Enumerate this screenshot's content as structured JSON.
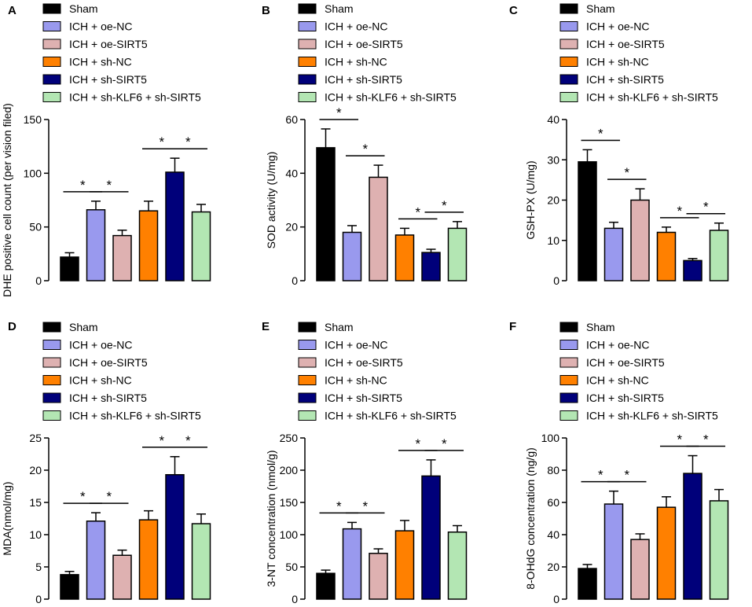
{
  "legend": [
    "Sham",
    "ICH + oe-NC",
    "ICH + oe-SIRT5",
    "ICH + sh-NC",
    "ICH + sh-SIRT5",
    "ICH + sh-KLF6 + sh-SIRT5"
  ],
  "colors": [
    "#000000",
    "#9999ee",
    "#deb1b1",
    "#ff8000",
    "#00007a",
    "#b3e6b3"
  ],
  "sig_mark": "*",
  "chart_data": [
    {
      "panel": "A",
      "type": "bar",
      "ylabel": "DHE positive cell count (per vision filed)",
      "ylim": [
        0,
        150
      ],
      "ticks": [
        0,
        50,
        100,
        150
      ],
      "values": [
        22,
        66,
        42,
        65,
        101,
        64
      ],
      "errors": [
        4,
        8,
        5,
        9,
        13,
        7
      ],
      "significance": [
        [
          0,
          1
        ],
        [
          1,
          2
        ],
        [
          3,
          4
        ],
        [
          4,
          5
        ]
      ]
    },
    {
      "panel": "B",
      "type": "bar",
      "ylabel": "SOD activity (U/mg)",
      "ylim": [
        0,
        60
      ],
      "ticks": [
        0,
        20,
        40,
        60
      ],
      "values": [
        49.5,
        18,
        38.5,
        17,
        10.5,
        19.5
      ],
      "errors": [
        7,
        2.5,
        4.5,
        2.5,
        1.2,
        2.5
      ],
      "significance": [
        [
          0,
          1
        ],
        [
          1,
          2
        ],
        [
          3,
          4
        ],
        [
          4,
          5
        ]
      ]
    },
    {
      "panel": "C",
      "type": "bar",
      "ylabel": "GSH-PX (U/mg)",
      "ylim": [
        0,
        40
      ],
      "ticks": [
        0,
        10,
        20,
        30,
        40
      ],
      "values": [
        29.5,
        13,
        20,
        12,
        5,
        12.5
      ],
      "errors": [
        3,
        1.5,
        2.8,
        1.3,
        0.5,
        1.8
      ],
      "significance": [
        [
          0,
          1
        ],
        [
          1,
          2
        ],
        [
          3,
          4
        ],
        [
          4,
          5
        ]
      ]
    },
    {
      "panel": "D",
      "type": "bar",
      "ylabel": "MDA(nmol/mg)",
      "ylim": [
        0,
        25
      ],
      "ticks": [
        0,
        5,
        10,
        15,
        20,
        25
      ],
      "values": [
        3.8,
        12.1,
        6.8,
        12.3,
        19.3,
        11.7
      ],
      "errors": [
        0.5,
        1.3,
        0.8,
        1.4,
        2.8,
        1.5
      ],
      "significance": [
        [
          0,
          1
        ],
        [
          1,
          2
        ],
        [
          3,
          4
        ],
        [
          4,
          5
        ]
      ]
    },
    {
      "panel": "E",
      "type": "bar",
      "ylabel": "3-NT concentration (nmol/g)",
      "ylim": [
        0,
        250
      ],
      "ticks": [
        0,
        50,
        100,
        150,
        200,
        250
      ],
      "values": [
        40,
        109,
        71,
        106,
        191,
        104
      ],
      "errors": [
        5,
        10,
        7,
        16,
        25,
        10
      ],
      "significance": [
        [
          0,
          1
        ],
        [
          1,
          2
        ],
        [
          3,
          4
        ],
        [
          4,
          5
        ]
      ]
    },
    {
      "panel": "F",
      "type": "bar",
      "ylabel": "8-OHdG concentration (ng/g)",
      "ylim": [
        0,
        100
      ],
      "ticks": [
        0,
        20,
        40,
        60,
        80,
        100
      ],
      "values": [
        19,
        59,
        37,
        57,
        78,
        61
      ],
      "errors": [
        2.5,
        8,
        3.5,
        6.5,
        11,
        7
      ],
      "significance": [
        [
          0,
          1
        ],
        [
          1,
          2
        ],
        [
          3,
          4
        ],
        [
          4,
          5
        ]
      ]
    }
  ]
}
